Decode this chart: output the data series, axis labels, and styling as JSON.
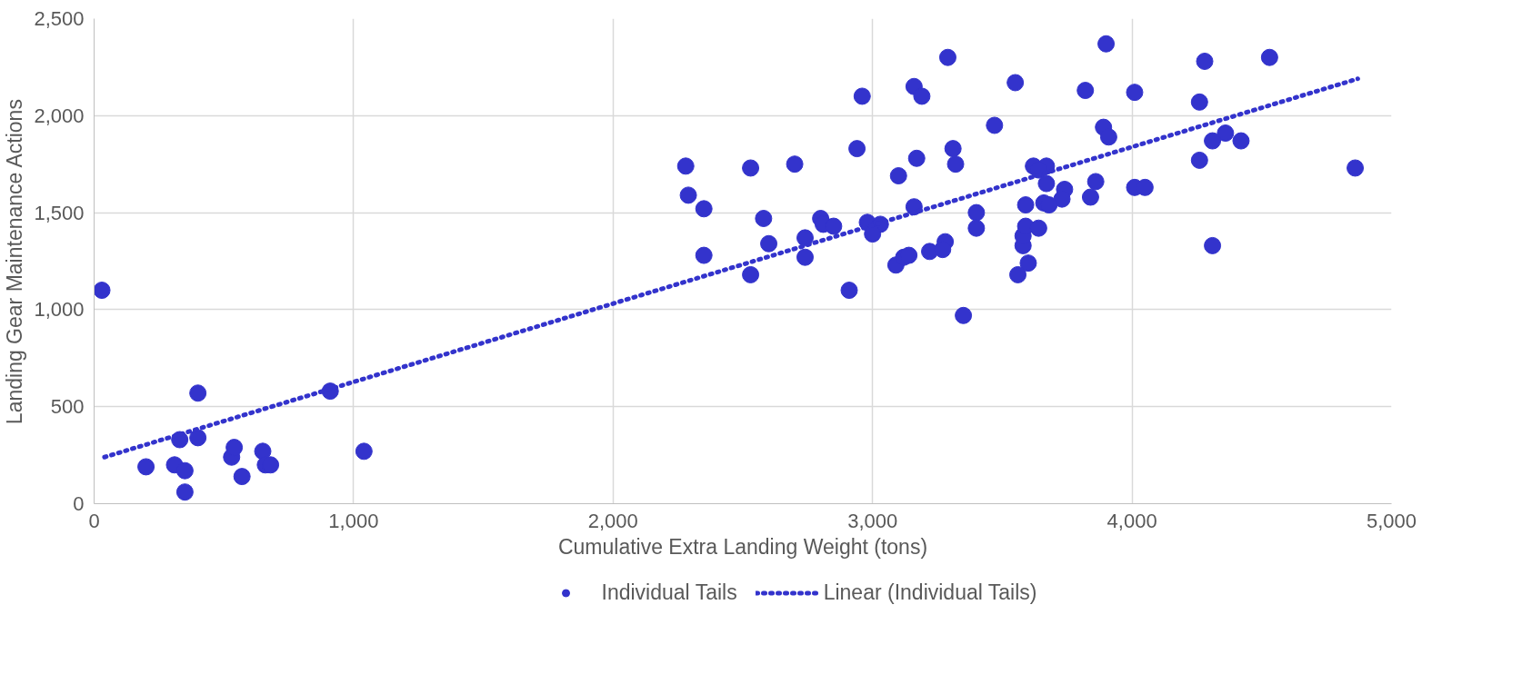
{
  "chart_data": {
    "type": "scatter",
    "xlabel": "Cumulative Extra Landing Weight (tons)",
    "ylabel": "Landing Gear Maintenance Actions",
    "xlim": [
      0,
      5000
    ],
    "xticks": [
      0,
      {
        "value": 1000,
        "label": "1,000"
      },
      {
        "value": 2000,
        "label": "2,000"
      },
      {
        "value": 3000,
        "label": "3,000"
      },
      {
        "value": 4000,
        "label": "4,000"
      },
      {
        "value": 5000,
        "label": "5,000"
      }
    ],
    "ylim": [
      0,
      2500
    ],
    "yticks": [
      0,
      500,
      {
        "value": 1000,
        "label": "1,000"
      },
      {
        "value": 1500,
        "label": "1,500"
      },
      {
        "value": 2000,
        "label": "2,000"
      },
      {
        "value": 2500,
        "label": "2,500"
      }
    ],
    "grid": true,
    "legend": "bottom",
    "series": [
      {
        "name": "Individual Tails",
        "marker": "circle",
        "color": "#3333cc",
        "x": [
          30,
          200,
          310,
          330,
          350,
          350,
          400,
          400,
          530,
          540,
          570,
          650,
          660,
          680,
          910,
          1040,
          2280,
          2290,
          2350,
          2350,
          2530,
          2530,
          2700,
          2580,
          2600,
          2800,
          2810,
          2850,
          2740,
          2740,
          2910,
          2940,
          2960,
          2980,
          3030,
          3000,
          3100,
          3090,
          3120,
          3140,
          3160,
          3190,
          3170,
          3160,
          3220,
          3280,
          3270,
          3290,
          3310,
          3320,
          3350,
          3400,
          3400,
          3470,
          3550,
          3590,
          3580,
          3580,
          3590,
          3600,
          3560,
          3620,
          3670,
          3640,
          3670,
          3740,
          3730,
          3660,
          3680,
          3640,
          3900,
          3820,
          3890,
          3910,
          3860,
          3840,
          4010,
          4010,
          4050,
          4280,
          4260,
          4360,
          4310,
          4420,
          4260,
          4310,
          4530,
          4860
        ],
        "values": [
          1100,
          190,
          200,
          330,
          170,
          60,
          570,
          340,
          240,
          290,
          140,
          270,
          200,
          200,
          580,
          270,
          1740,
          1590,
          1520,
          1280,
          1730,
          1180,
          1750,
          1470,
          1340,
          1470,
          1440,
          1430,
          1370,
          1270,
          1100,
          1830,
          2100,
          1450,
          1440,
          1390,
          1690,
          1230,
          1270,
          1280,
          2150,
          2100,
          1780,
          1530,
          1300,
          1350,
          1310,
          2300,
          1830,
          1750,
          970,
          1500,
          1420,
          1950,
          2170,
          1540,
          1330,
          1380,
          1430,
          1240,
          1180,
          1740,
          1740,
          1720,
          1650,
          1620,
          1570,
          1550,
          1540,
          1420,
          2370,
          2130,
          1940,
          1890,
          1660,
          1580,
          2120,
          1630,
          1630,
          2280,
          2070,
          1910,
          1870,
          1870,
          1770,
          1330,
          2300,
          1730
        ]
      },
      {
        "name": "Linear (Individual Tails)",
        "type": "line",
        "line_style": "dotted",
        "color": "#3333cc",
        "x": [
          40,
          4870
        ],
        "values": [
          240,
          2190
        ]
      }
    ]
  }
}
